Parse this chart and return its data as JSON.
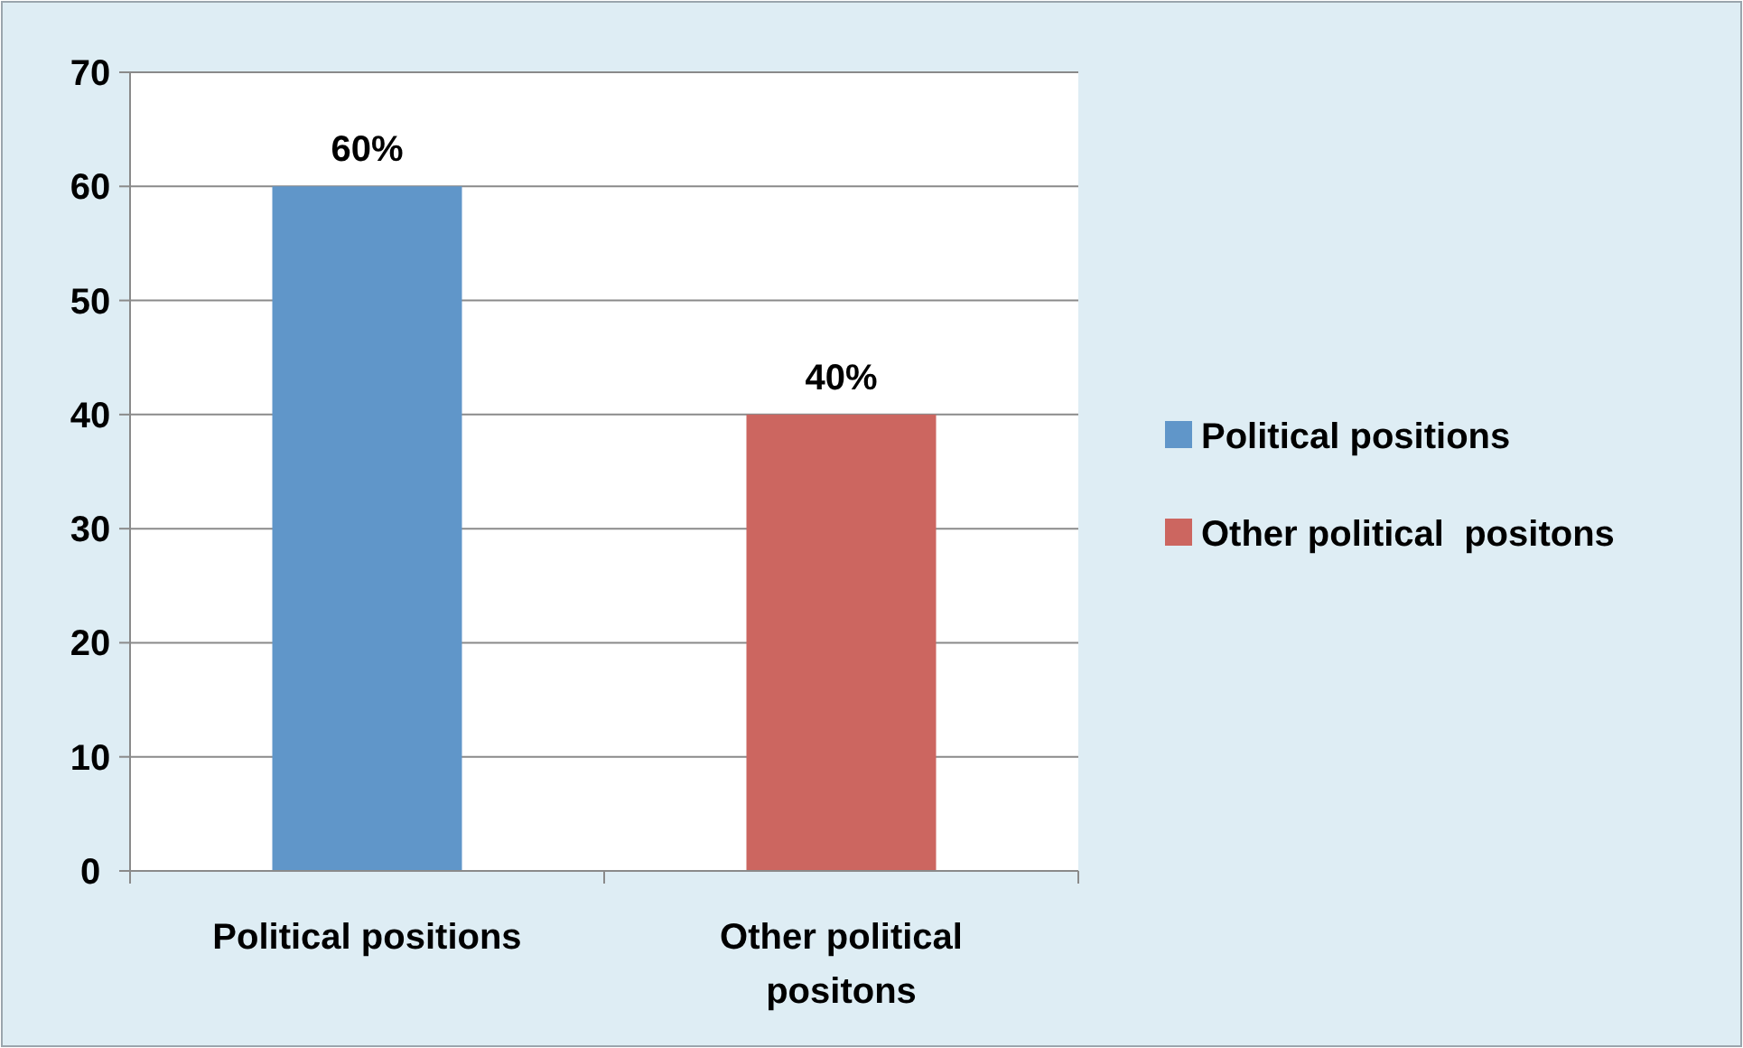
{
  "chart_data": {
    "type": "bar",
    "categories": [
      "Political positions",
      "Other political positons"
    ],
    "series": [
      {
        "name": "Political positions",
        "color": "#6096c9",
        "values": [
          60,
          null
        ],
        "value_labels": [
          "60%",
          null
        ]
      },
      {
        "name": "Other political  positons",
        "color": "#cc6660",
        "values": [
          null,
          40
        ],
        "value_labels": [
          null,
          "40%"
        ]
      }
    ],
    "ylim": [
      0,
      70
    ],
    "yticks": [
      0,
      10,
      20,
      30,
      40,
      50,
      60,
      70
    ],
    "grid": "y",
    "legend": "right"
  }
}
